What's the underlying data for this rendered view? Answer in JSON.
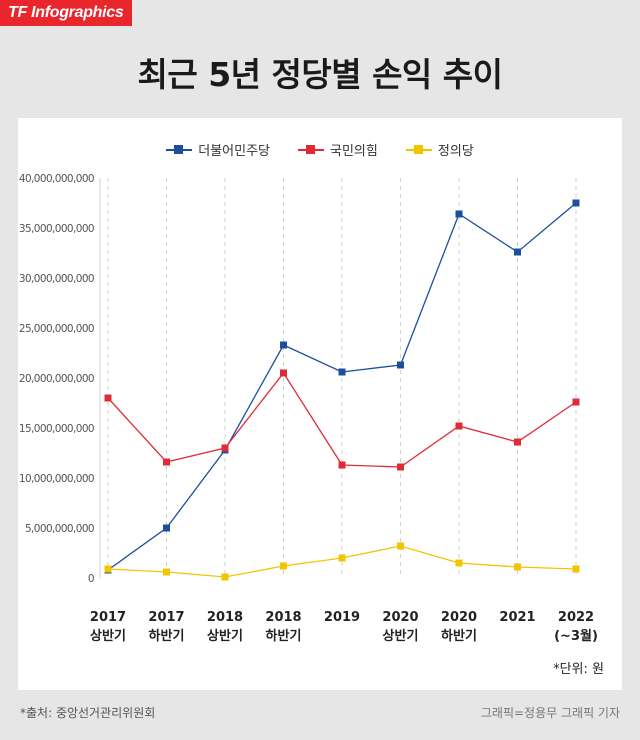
{
  "brand": "TF Infographics",
  "title": "최근 5년 정당별 손익 추이",
  "unit_note": "*단위: 원",
  "source": "*출처: 중앙선거관리위원회",
  "credit": "그래픽=정용무 그래픽 기자",
  "chart_data": {
    "type": "line",
    "categories": [
      [
        "2017",
        "상반기"
      ],
      [
        "2017",
        "하반기"
      ],
      [
        "2018",
        "상반기"
      ],
      [
        "2018",
        "하반기"
      ],
      [
        "2019"
      ],
      [
        "2020",
        "상반기"
      ],
      [
        "2020",
        "하반기"
      ],
      [
        "2021"
      ],
      [
        "2022",
        "(~3월)"
      ]
    ],
    "y_ticks": [
      "0",
      "5,000,000,000",
      "10,000,000,000",
      "15,000,000,000",
      "20,000,000,000",
      "25,000,000,000",
      "30,000,000,000",
      "35,000,000,000",
      "40,000,000,000"
    ],
    "ylim": [
      0,
      40000000000
    ],
    "grid": "vertical dashed",
    "legend_position": "top-center",
    "series": [
      {
        "name": "더불어민주당",
        "color": "#1c4f9c",
        "values": [
          800000000,
          5000000000,
          12800000000,
          23300000000,
          20600000000,
          21300000000,
          36400000000,
          32600000000,
          37500000000
        ]
      },
      {
        "name": "국민의힘",
        "color": "#e02b36",
        "values": [
          18000000000,
          11600000000,
          13000000000,
          20500000000,
          11300000000,
          11100000000,
          15200000000,
          13600000000,
          17600000000
        ]
      },
      {
        "name": "정의당",
        "color": "#f2c500",
        "values": [
          900000000,
          600000000,
          100000000,
          1200000000,
          2000000000,
          3200000000,
          1500000000,
          1100000000,
          900000000
        ]
      }
    ]
  }
}
